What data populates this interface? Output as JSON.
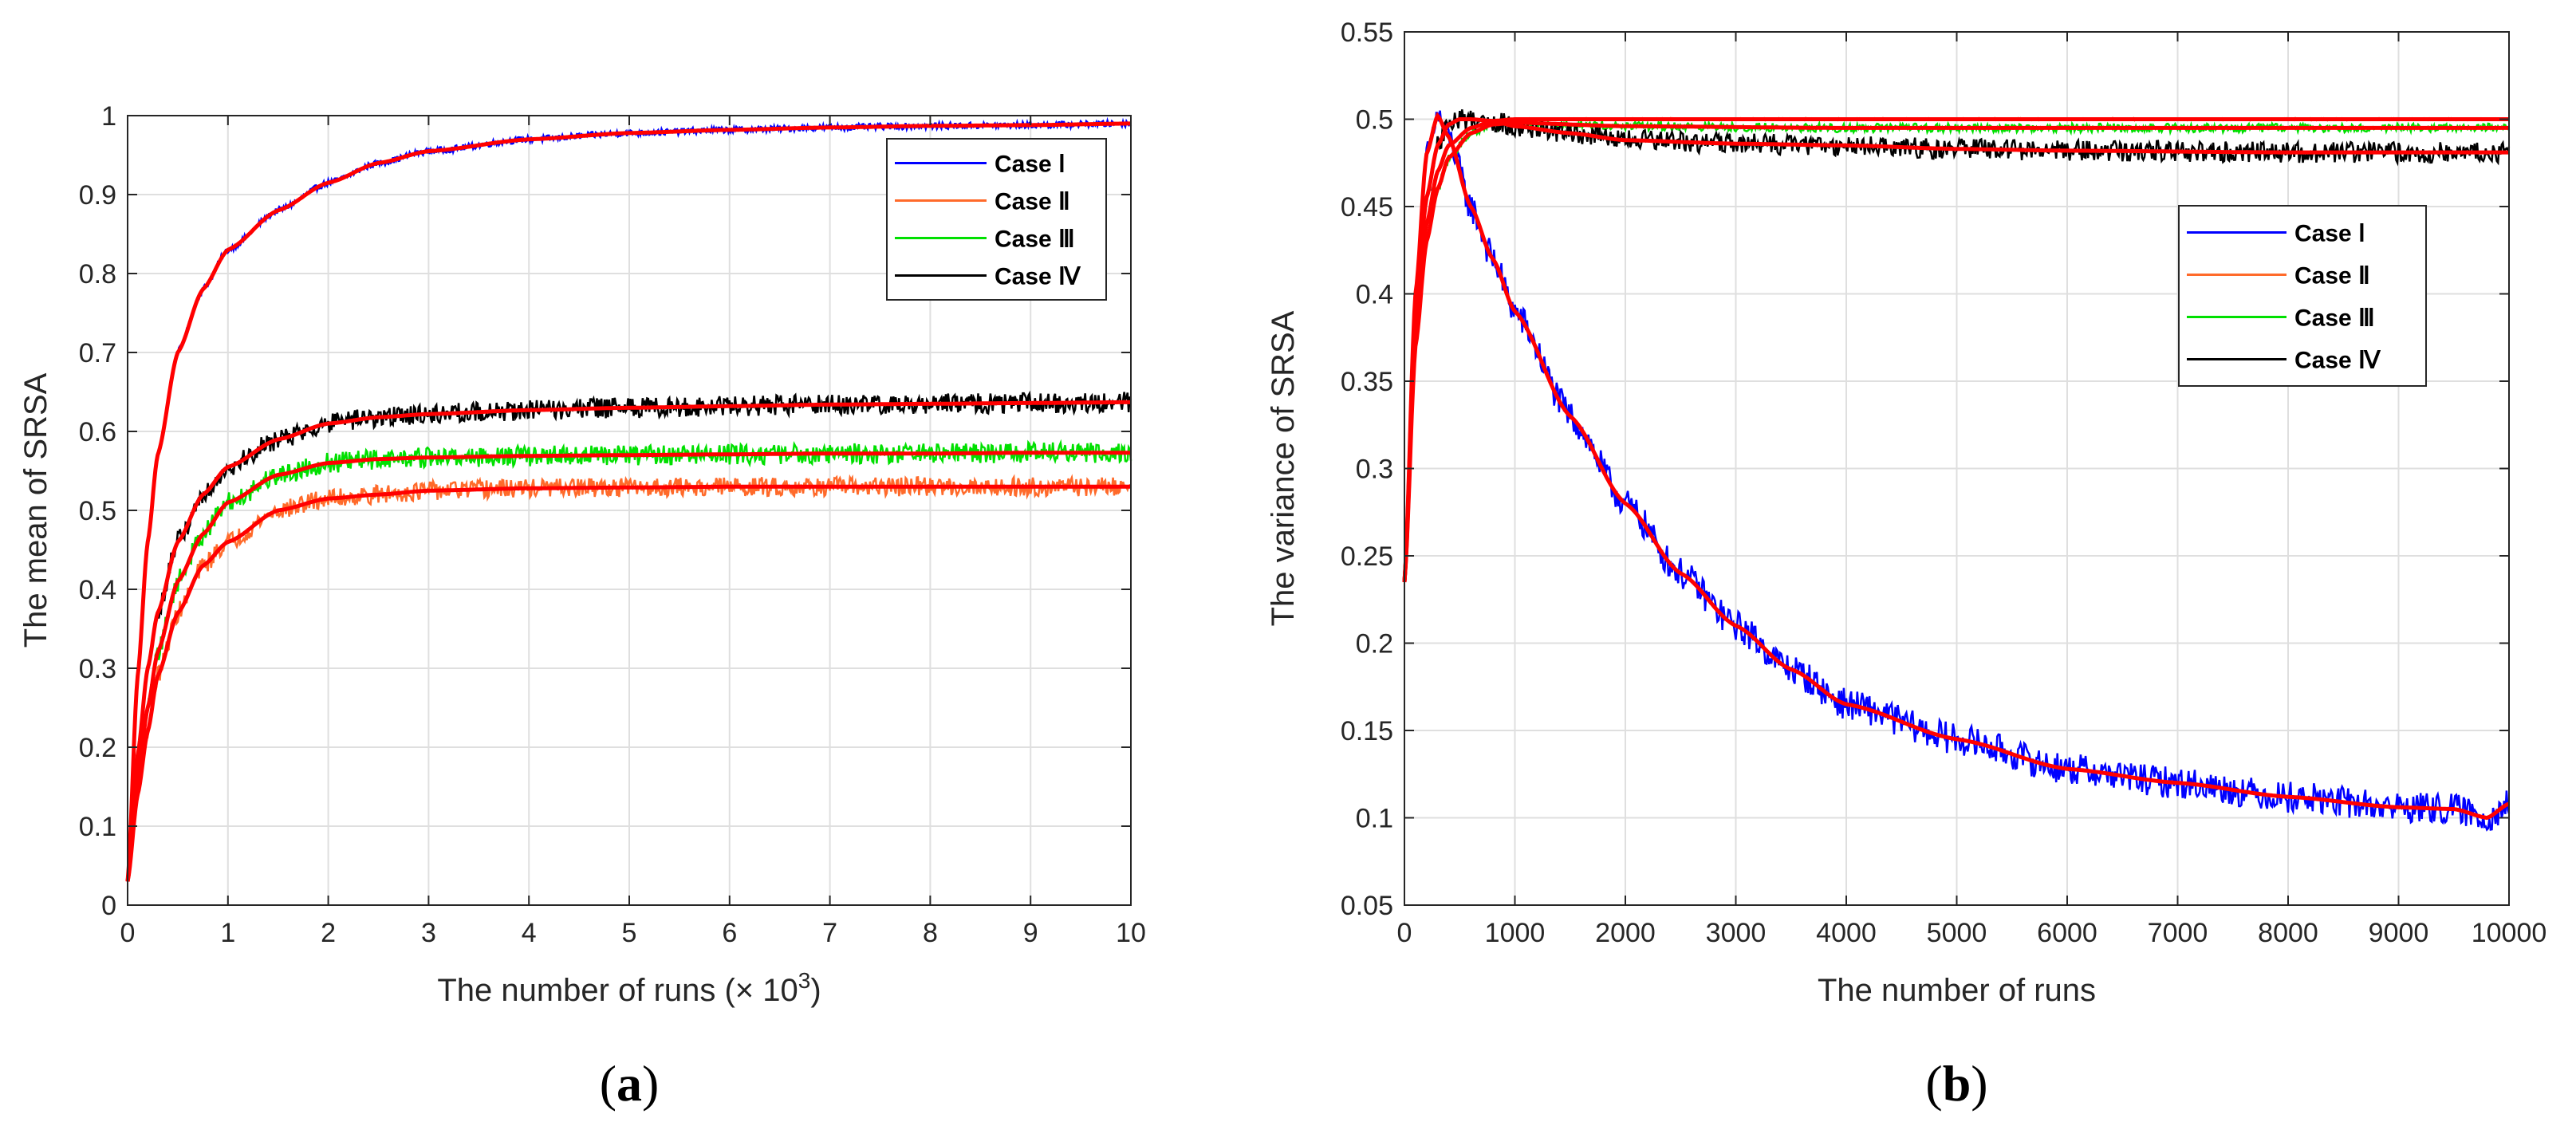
{
  "chart_data": [
    {
      "type": "line",
      "panel": "a",
      "caption_letter": "a",
      "xlabel": "The number of runs (× 10",
      "xlabel_sup": "3",
      "xlabel_close": ")",
      "ylabel": "The mean of SRSA",
      "xlim": [
        0,
        10
      ],
      "ylim": [
        0,
        1
      ],
      "xticks": [
        "0",
        "1",
        "2",
        "3",
        "4",
        "5",
        "6",
        "7",
        "8",
        "9",
        "10"
      ],
      "yticks": [
        "0",
        "0.1",
        "0.2",
        "0.3",
        "0.4",
        "0.5",
        "0.6",
        "0.7",
        "0.8",
        "0.9",
        "1"
      ],
      "grid": true,
      "legend_position": "top-right",
      "fit_color": "#ff0000",
      "series": [
        {
          "name": "Case Ⅰ",
          "color": "#0000ff",
          "noise": 0.004,
          "x": [
            0,
            0.1,
            0.2,
            0.3,
            0.5,
            0.75,
            1,
            1.5,
            2,
            2.5,
            3,
            4,
            5,
            6,
            7,
            8,
            9,
            10
          ],
          "values": [
            0.03,
            0.29,
            0.46,
            0.57,
            0.7,
            0.78,
            0.83,
            0.88,
            0.915,
            0.94,
            0.955,
            0.97,
            0.978,
            0.982,
            0.985,
            0.987,
            0.988,
            0.99
          ]
        },
        {
          "name": "Case Ⅱ",
          "color": "#ff6a2a",
          "noise": 0.012,
          "x": [
            0,
            0.1,
            0.2,
            0.3,
            0.5,
            0.75,
            1,
            1.5,
            2,
            2.5,
            3,
            4,
            5,
            6,
            7,
            8,
            9,
            10
          ],
          "values": [
            0.03,
            0.14,
            0.22,
            0.29,
            0.37,
            0.43,
            0.46,
            0.5,
            0.515,
            0.52,
            0.525,
            0.528,
            0.529,
            0.53,
            0.53,
            0.53,
            0.53,
            0.53
          ]
        },
        {
          "name": "Case Ⅲ",
          "color": "#00e000",
          "noise": 0.013,
          "x": [
            0,
            0.1,
            0.2,
            0.3,
            0.5,
            0.75,
            1,
            1.5,
            2,
            2.5,
            3,
            4,
            5,
            6,
            7,
            8,
            9,
            10
          ],
          "values": [
            0.03,
            0.16,
            0.25,
            0.32,
            0.41,
            0.47,
            0.51,
            0.545,
            0.56,
            0.565,
            0.567,
            0.569,
            0.57,
            0.571,
            0.572,
            0.572,
            0.573,
            0.573
          ]
        },
        {
          "name": "Case Ⅳ",
          "color": "#000000",
          "noise": 0.013,
          "x": [
            0,
            0.1,
            0.2,
            0.3,
            0.5,
            0.75,
            1,
            1.5,
            2,
            2.5,
            3,
            4,
            5,
            6,
            7,
            8,
            9,
            10
          ],
          "values": [
            0.03,
            0.19,
            0.3,
            0.37,
            0.46,
            0.52,
            0.555,
            0.59,
            0.61,
            0.618,
            0.622,
            0.627,
            0.63,
            0.632,
            0.634,
            0.635,
            0.636,
            0.637
          ]
        }
      ]
    },
    {
      "type": "line",
      "panel": "b",
      "caption_letter": "b",
      "xlabel": "The number of runs",
      "ylabel": "The variance of SRSA",
      "xlim": [
        0,
        10000
      ],
      "ylim": [
        0.05,
        0.55
      ],
      "xticks": [
        "0",
        "1000",
        "2000",
        "3000",
        "4000",
        "5000",
        "6000",
        "7000",
        "8000",
        "9000",
        "10000"
      ],
      "yticks": [
        "0.05",
        "0.1",
        "0.15",
        "0.2",
        "0.25",
        "0.3",
        "0.35",
        "0.4",
        "0.45",
        "0.5",
        "0.55"
      ],
      "grid": true,
      "legend_position": "upper-right",
      "fit_color": "#ff0000",
      "series": [
        {
          "name": "Case Ⅰ",
          "color": "#0000ff",
          "noise": 0.009,
          "x": [
            0,
            100,
            200,
            300,
            400,
            600,
            800,
            1000,
            1500,
            2000,
            2500,
            3000,
            3500,
            4000,
            5000,
            6000,
            7000,
            8000,
            9000,
            9500,
            9800,
            10000
          ],
          "values": [
            0.235,
            0.4,
            0.48,
            0.502,
            0.49,
            0.45,
            0.42,
            0.39,
            0.33,
            0.28,
            0.24,
            0.21,
            0.185,
            0.165,
            0.145,
            0.128,
            0.12,
            0.112,
            0.106,
            0.105,
            0.1,
            0.108
          ]
        },
        {
          "name": "Case Ⅱ",
          "color": "#ff6a2a",
          "noise": 0.0006,
          "x": [
            0,
            100,
            200,
            300,
            400,
            600,
            800,
            1000,
            2000,
            4000,
            6000,
            8000,
            10000
          ],
          "values": [
            0.235,
            0.38,
            0.44,
            0.47,
            0.485,
            0.495,
            0.499,
            0.5,
            0.5,
            0.5,
            0.5,
            0.5,
            0.5
          ]
        },
        {
          "name": "Case Ⅲ",
          "color": "#00e000",
          "noise": 0.0025,
          "x": [
            0,
            100,
            200,
            300,
            400,
            600,
            800,
            1000,
            2000,
            4000,
            6000,
            8000,
            10000
          ],
          "values": [
            0.235,
            0.37,
            0.43,
            0.46,
            0.478,
            0.492,
            0.497,
            0.498,
            0.496,
            0.495,
            0.495,
            0.495,
            0.495
          ]
        },
        {
          "name": "Case Ⅳ",
          "color": "#000000",
          "noise": 0.006,
          "x": [
            0,
            100,
            200,
            300,
            400,
            500,
            600,
            800,
            1000,
            1500,
            2000,
            3000,
            4000,
            5000,
            6000,
            8000,
            10000
          ],
          "values": [
            0.235,
            0.39,
            0.455,
            0.485,
            0.497,
            0.5,
            0.5,
            0.499,
            0.496,
            0.492,
            0.488,
            0.486,
            0.485,
            0.483,
            0.482,
            0.481,
            0.481
          ]
        }
      ]
    }
  ]
}
